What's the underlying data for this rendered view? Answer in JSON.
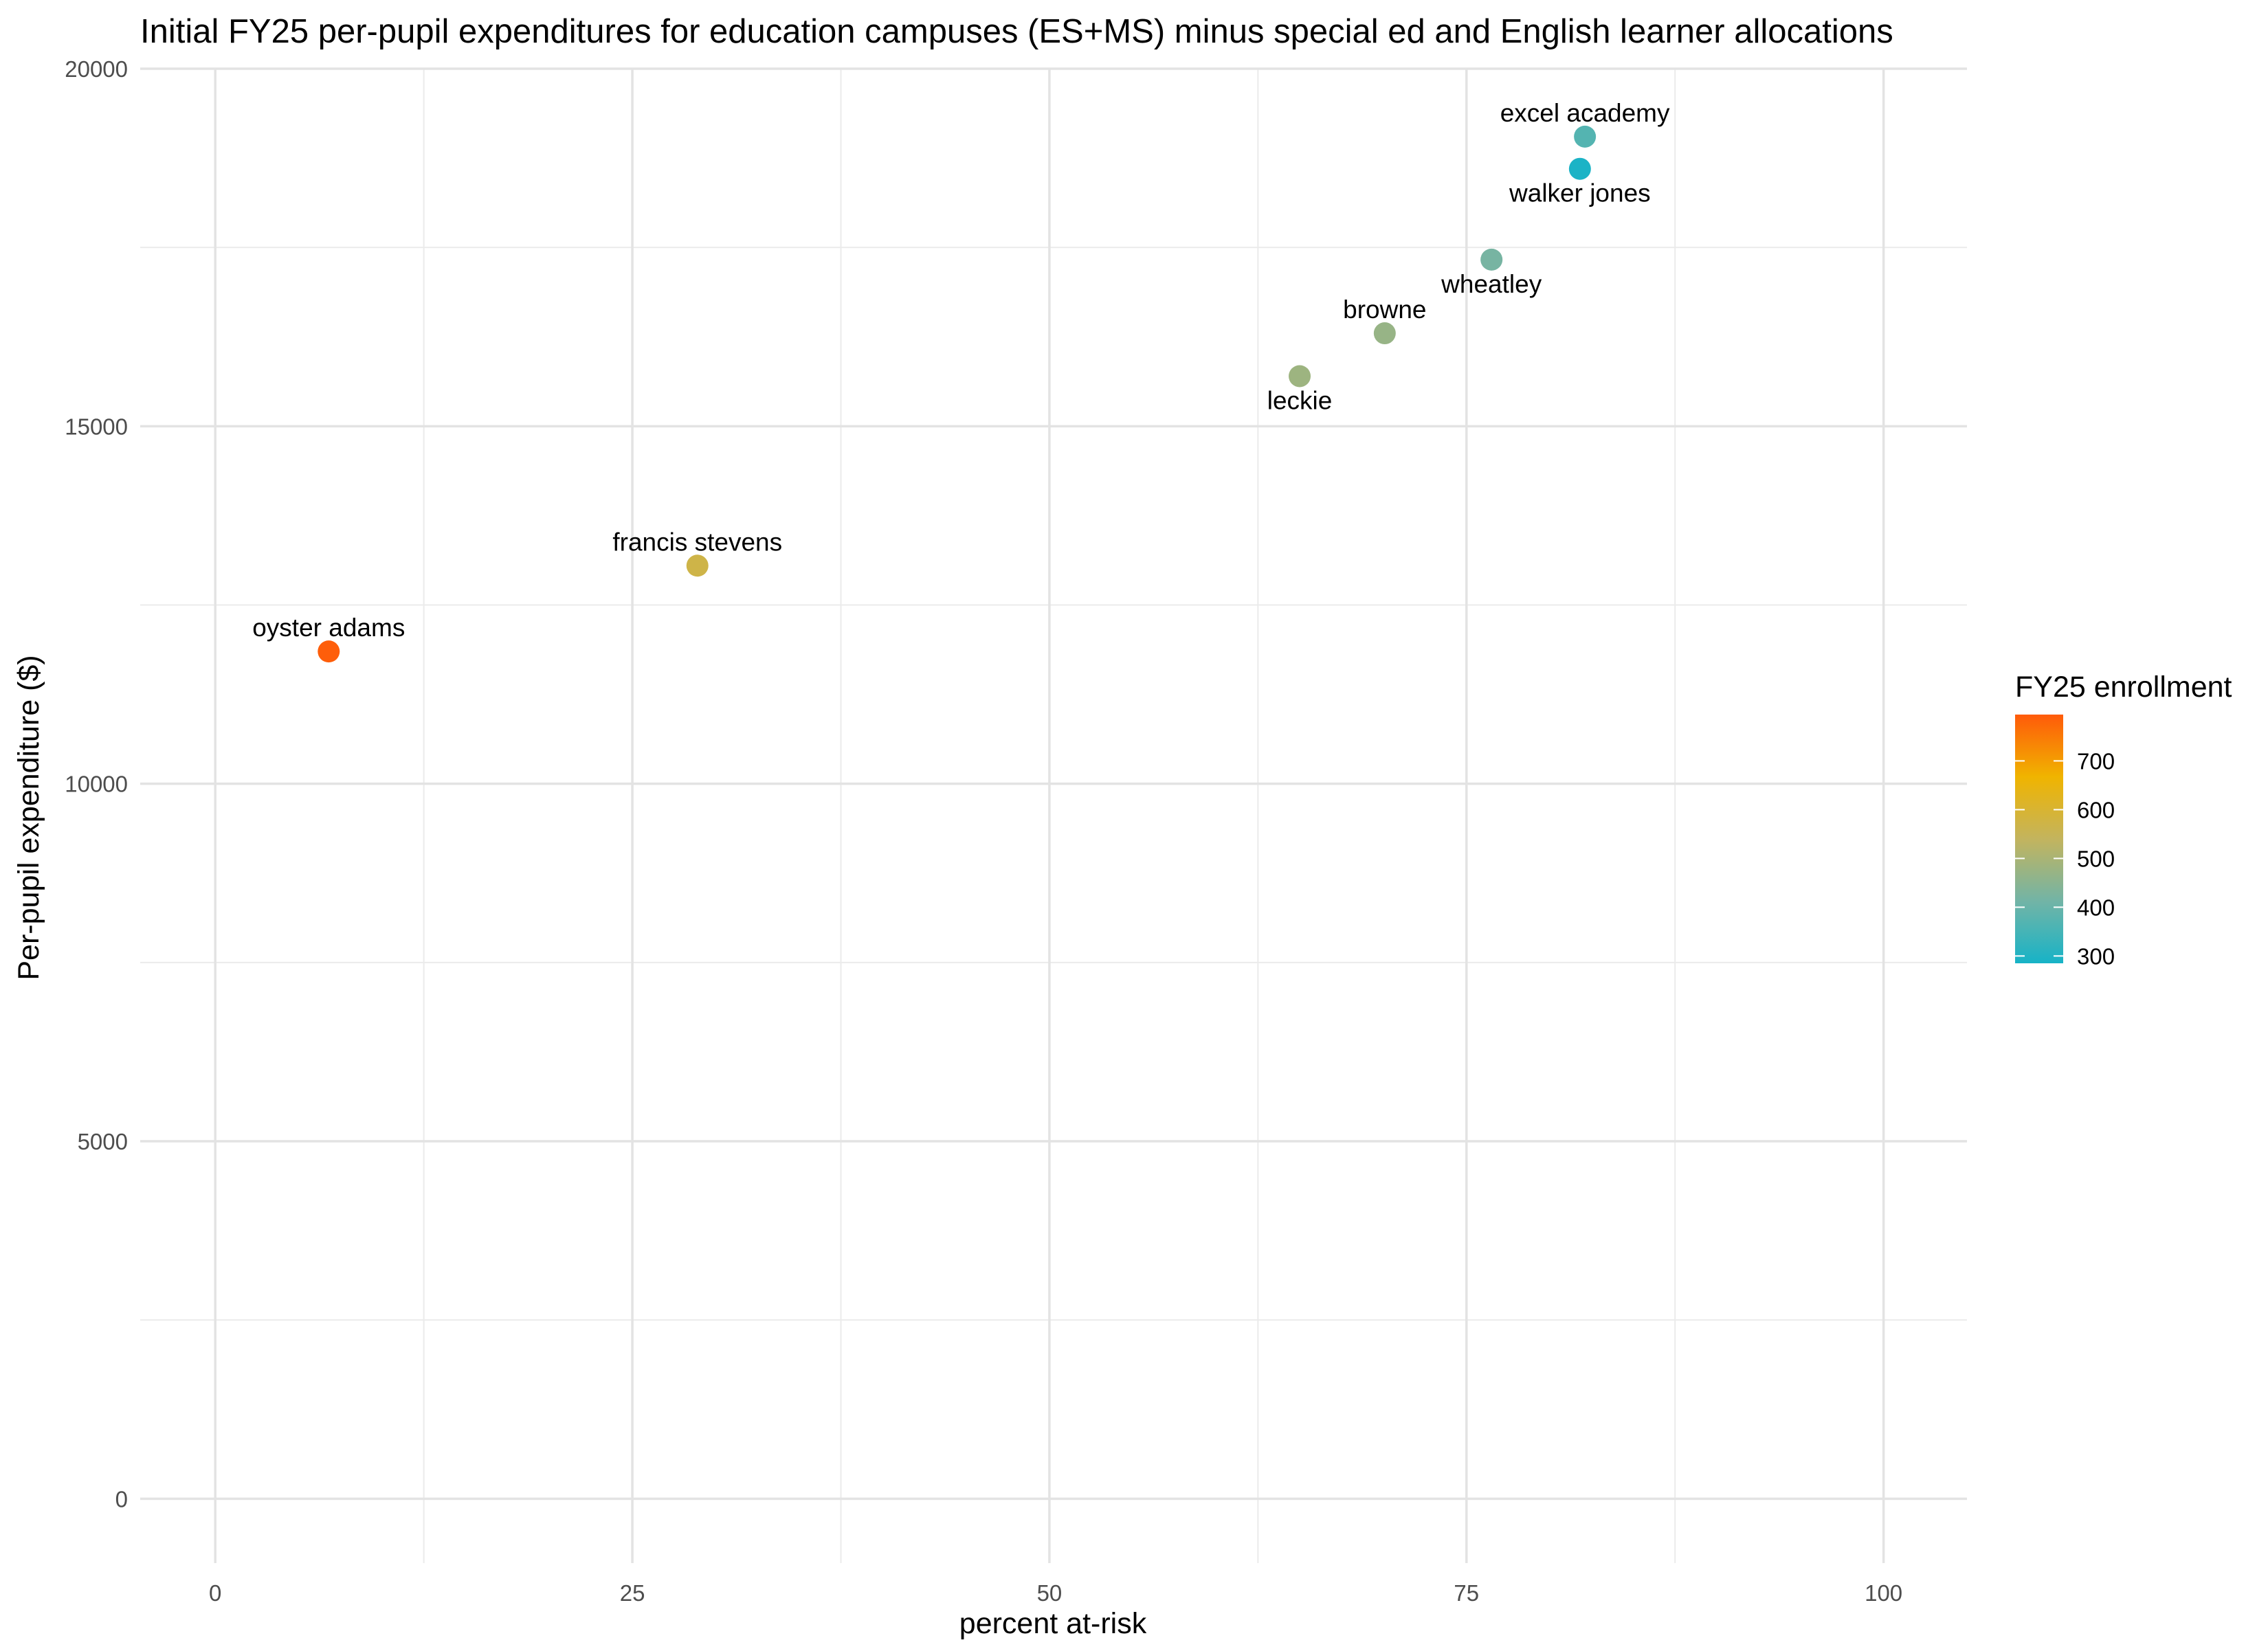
{
  "chart_data": {
    "type": "scatter",
    "title": "Initial FY25 per-pupil expenditures for education campuses (ES+MS) minus special ed and English learner allocations",
    "xlabel": "percent at-risk",
    "ylabel": "Per-pupil expenditure ($)",
    "xlim": [
      -4.5,
      105
    ],
    "ylim": [
      -900,
      20000
    ],
    "x_ticks": [
      0,
      25,
      50,
      75,
      100
    ],
    "x_tick_labels": [
      "0",
      "25",
      "50",
      "75",
      "100"
    ],
    "y_ticks": [
      0,
      5000,
      10000,
      15000,
      20000
    ],
    "y_tick_labels": [
      "0",
      "5000",
      "10000",
      "15000",
      "20000"
    ],
    "grid": true,
    "points": [
      {
        "label": "oyster adams",
        "x": 6.8,
        "y": 11850,
        "enrollment": 790,
        "label_pos": "above"
      },
      {
        "label": "francis stevens",
        "x": 28.9,
        "y": 13050,
        "enrollment": 570,
        "label_pos": "above"
      },
      {
        "label": "leckie",
        "x": 65,
        "y": 15700,
        "enrollment": 480,
        "label_pos": "below"
      },
      {
        "label": "browne",
        "x": 70.1,
        "y": 16300,
        "enrollment": 470,
        "label_pos": "above"
      },
      {
        "label": "wheatley",
        "x": 76.5,
        "y": 17330,
        "enrollment": 420,
        "label_pos": "below"
      },
      {
        "label": "excel academy",
        "x": 82.1,
        "y": 19050,
        "enrollment": 370,
        "label_pos": "above"
      },
      {
        "label": "walker jones",
        "x": 81.8,
        "y": 18600,
        "enrollment": 290,
        "label_pos": "below"
      }
    ],
    "legend": {
      "title": "FY25 enrollment",
      "position": "right",
      "min": 285,
      "max": 795,
      "ticks": [
        300,
        400,
        500,
        600,
        700
      ],
      "tick_labels": [
        "300",
        "400",
        "500",
        "600",
        "700"
      ],
      "colors": [
        "#17b3c7",
        "#72b4a6",
        "#c3b45e",
        "#f0b400",
        "#ff5a0a"
      ]
    }
  }
}
